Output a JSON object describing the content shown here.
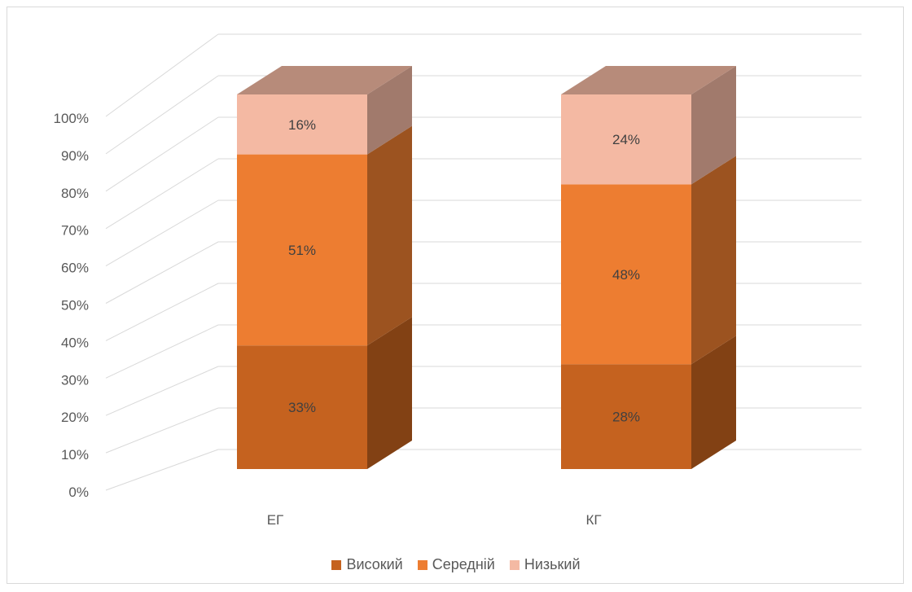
{
  "chart_data": {
    "type": "bar",
    "stacked": true,
    "three_d": true,
    "categories": [
      "ЕГ",
      "КГ"
    ],
    "series": [
      {
        "name": "Високий",
        "values": [
          33,
          28
        ],
        "labels": [
          "33%",
          "28%"
        ],
        "color": "#c5621f"
      },
      {
        "name": "Середній",
        "values": [
          51,
          48
        ],
        "labels": [
          "51%",
          "48%"
        ],
        "color": "#ed7d31"
      },
      {
        "name": "Низький",
        "values": [
          16,
          24
        ],
        "labels": [
          "16%",
          "24%"
        ],
        "color": "#f4b9a3"
      }
    ],
    "y_ticks": [
      "0%",
      "10%",
      "20%",
      "30%",
      "40%",
      "50%",
      "60%",
      "70%",
      "80%",
      "90%",
      "100%"
    ],
    "ylim": [
      0,
      100
    ],
    "grid": true,
    "legend_position": "bottom",
    "title": "",
    "xlabel": "",
    "ylabel": ""
  }
}
